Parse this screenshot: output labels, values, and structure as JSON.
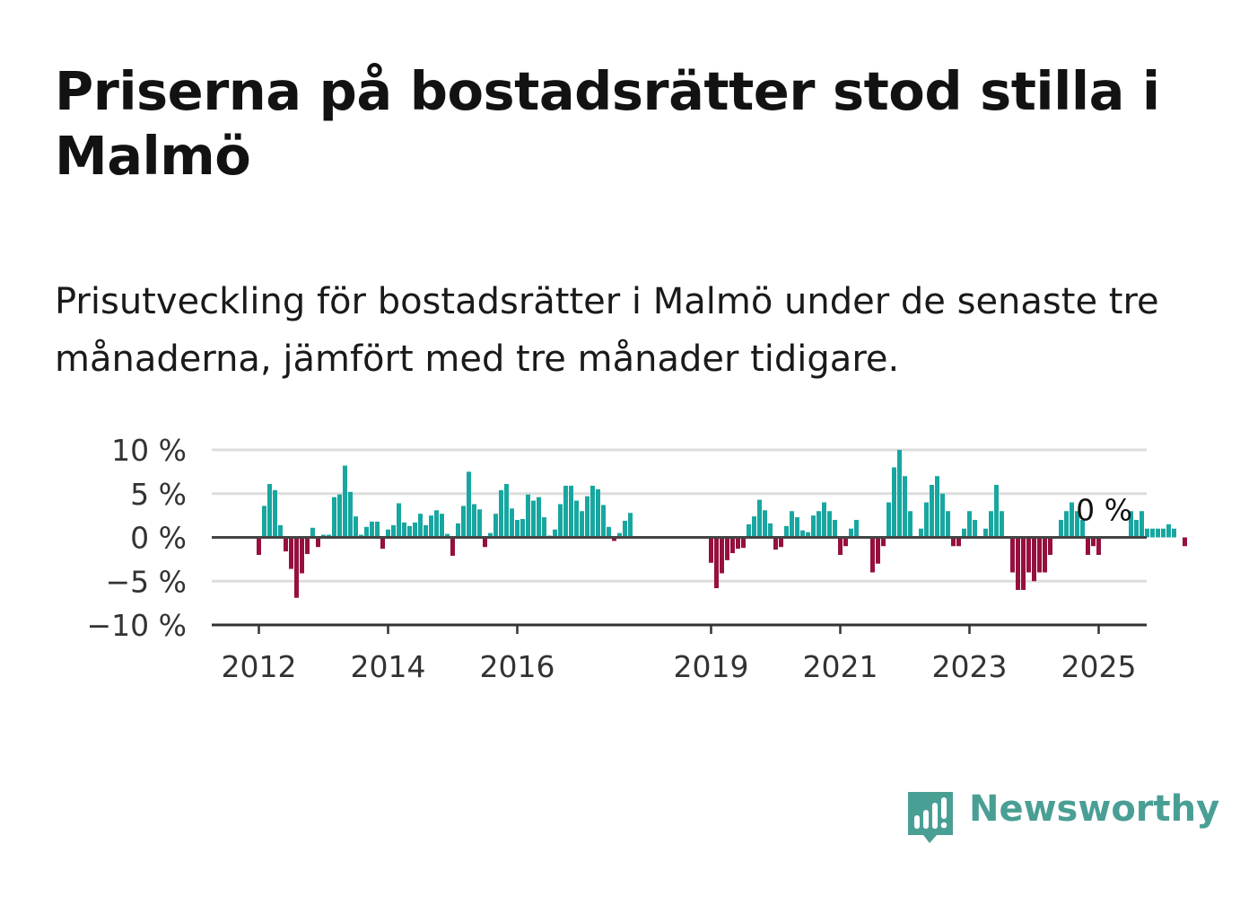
{
  "title": "Priserna på bostadsrätter stod stilla i Malmö",
  "subtitle": "Prisutveckling för bostadsrätter i Malmö under de senaste tre månaderna, jämfört med tre månader tidigare.",
  "brand": {
    "name": "Newsworthy",
    "color": "#4a9f95"
  },
  "colors": {
    "positive": "#18a7a0",
    "negative": "#96103f",
    "zero_line": "#444444",
    "grid": "#dddddd"
  },
  "chart_data": {
    "type": "bar",
    "ylim": [
      -10,
      10
    ],
    "y_ticks": [
      10,
      5,
      0,
      -5,
      -10
    ],
    "y_tick_labels": [
      "10 %",
      "5 %",
      "0 %",
      "−5 %",
      "−10 %"
    ],
    "x_tick_labels": [
      "2012",
      "2014",
      "2016",
      "2019",
      "2021",
      "2023",
      "2025"
    ],
    "x_tick_positions": [
      "2012-01",
      "2014-01",
      "2016-01",
      "2019-01",
      "2021-01",
      "2023-01",
      "2025-01"
    ],
    "grid": true,
    "x_start": "2012-01",
    "annotation": {
      "text": "0 %",
      "x": "2025-01",
      "value": 0
    },
    "values": [
      -2,
      3.6,
      6.1,
      5.4,
      1.4,
      -1.6,
      -3.6,
      -6.9,
      -4.1,
      -1.9,
      1.1,
      -1.1,
      0.3,
      0.3,
      4.6,
      4.9,
      8.2,
      5.2,
      2.4,
      0.3,
      1.2,
      1.8,
      1.8,
      -1.3,
      0.9,
      1.4,
      3.9,
      1.7,
      1.3,
      1.7,
      2.7,
      1.4,
      2.5,
      3.1,
      2.7,
      0.4,
      -2.1,
      1.6,
      3.6,
      7.5,
      3.8,
      3.2,
      -1.1,
      0.5,
      2.7,
      5.4,
      6.1,
      3.3,
      2.0,
      2.1,
      4.9,
      4.2,
      4.6,
      2.3,
      0.2,
      0.9,
      3.8,
      5.9,
      5.9,
      4.2,
      3.0,
      4.7,
      5.9,
      5.5,
      3.7,
      1.2,
      -0.4,
      0.5,
      1.9,
      2.8,
      0,
      0,
      0,
      0,
      0,
      0,
      0,
      0,
      0,
      0,
      0,
      0,
      0,
      0,
      -2.9,
      -5.8,
      -4.1,
      -2.6,
      -1.8,
      -1.3,
      -1.2,
      1.5,
      2.4,
      4.3,
      3.1,
      1.6,
      -1.4,
      -1.1,
      1.3,
      3.0,
      2.3,
      0.8,
      0.6,
      2.5,
      3.0,
      4.0,
      3.0,
      2.0,
      -2,
      -1,
      1,
      2,
      0,
      0,
      -4,
      -3,
      -1,
      4,
      8,
      10,
      7,
      3,
      0,
      1,
      4,
      6,
      7,
      5,
      3,
      -1,
      -1,
      1,
      3,
      2,
      0,
      1,
      3,
      6,
      3,
      0,
      -4,
      -6,
      -6,
      -4,
      -5,
      -4,
      -4,
      -2,
      0,
      2,
      3,
      4,
      3,
      2,
      -2,
      -1,
      -2,
      0,
      0,
      0,
      0,
      0,
      3,
      2,
      3,
      1,
      1,
      1,
      1,
      1.5,
      1,
      0,
      -1
    ]
  }
}
